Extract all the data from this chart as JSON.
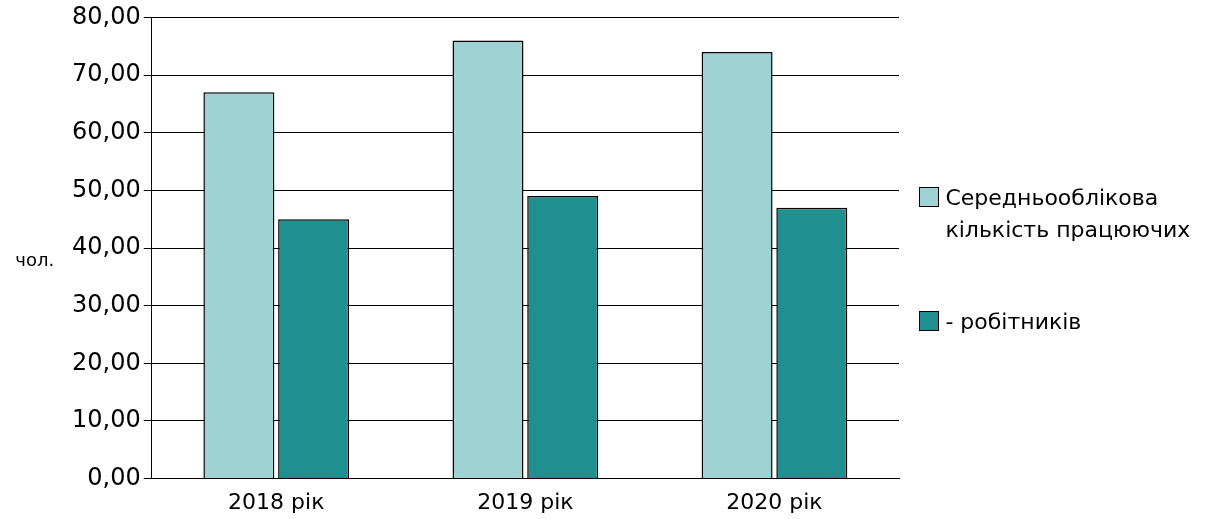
{
  "chart_data": {
    "type": "bar",
    "ylabel": "чол.",
    "categories": [
      "2018 рік",
      "2019 рік",
      "2020 рік"
    ],
    "series": [
      {
        "name": "Середньооблікова кількість працюючих",
        "color": "#9fd3d3",
        "values": [
          67,
          76,
          74
        ]
      },
      {
        "name": "- робітників",
        "color": "#1f8f8f",
        "values": [
          45,
          49,
          47
        ]
      }
    ],
    "ylim": [
      0,
      80
    ],
    "yticks": [
      {
        "value": 0,
        "label": "0,00"
      },
      {
        "value": 10,
        "label": "10,00"
      },
      {
        "value": 20,
        "label": "20,00"
      },
      {
        "value": 30,
        "label": "30,00"
      },
      {
        "value": 40,
        "label": "40,00"
      },
      {
        "value": 50,
        "label": "50,00"
      },
      {
        "value": 60,
        "label": "60,00"
      },
      {
        "value": 70,
        "label": "70,00"
      },
      {
        "value": 80,
        "label": "80,00"
      }
    ],
    "grid": "y",
    "legend": "right"
  }
}
